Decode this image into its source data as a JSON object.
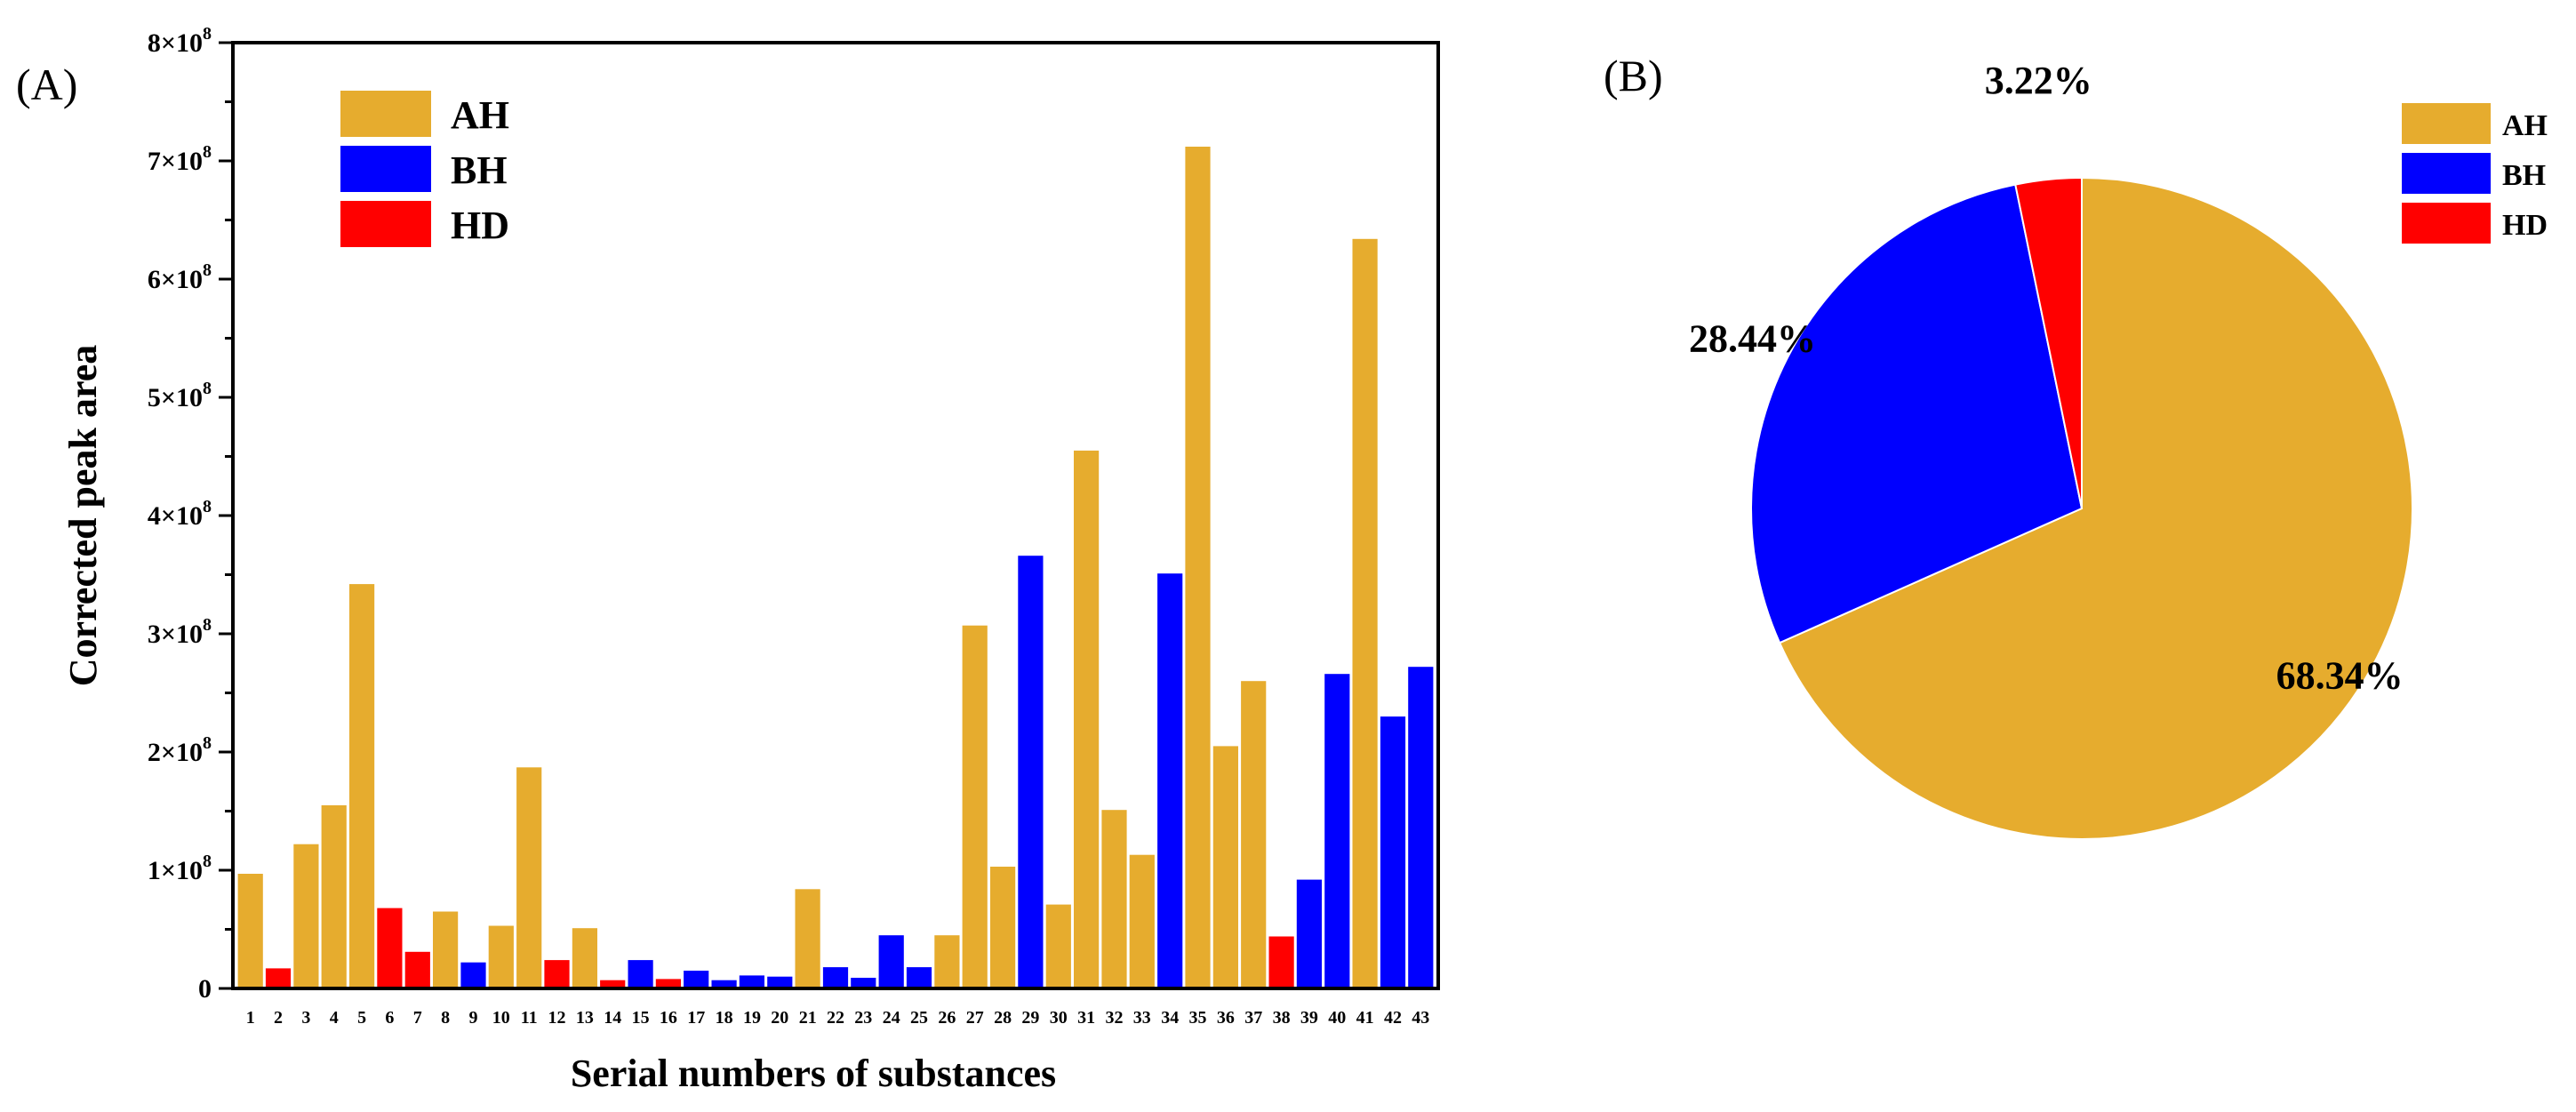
{
  "colors": {
    "AH": "#E6AC2E",
    "BH": "#0000FF",
    "HD": "#FF0000"
  },
  "chart_data": [
    {
      "type": "bar",
      "panel_label": "(A)",
      "xlabel": "Serial numbers of substances",
      "ylabel": "Corrected peak area",
      "ylim": [
        0,
        800000000
      ],
      "yticks": [
        {
          "value": 0,
          "mantissa": "0",
          "exp": ""
        },
        {
          "value": 100000000,
          "mantissa": "1×10",
          "exp": "8"
        },
        {
          "value": 200000000,
          "mantissa": "2×10",
          "exp": "8"
        },
        {
          "value": 300000000,
          "mantissa": "3×10",
          "exp": "8"
        },
        {
          "value": 400000000,
          "mantissa": "4×10",
          "exp": "8"
        },
        {
          "value": 500000000,
          "mantissa": "5×10",
          "exp": "8"
        },
        {
          "value": 600000000,
          "mantissa": "6×10",
          "exp": "8"
        },
        {
          "value": 700000000,
          "mantissa": "7×10",
          "exp": "8"
        },
        {
          "value": 800000000,
          "mantissa": "8×10",
          "exp": "8"
        }
      ],
      "legend": [
        "AH",
        "BH",
        "HD"
      ],
      "legend_position": "top-left",
      "categories": [
        "1",
        "2",
        "3",
        "4",
        "5",
        "6",
        "7",
        "8",
        "9",
        "10",
        "11",
        "12",
        "13",
        "14",
        "15",
        "16",
        "17",
        "18",
        "19",
        "20",
        "21",
        "22",
        "23",
        "24",
        "25",
        "26",
        "27",
        "28",
        "29",
        "30",
        "31",
        "32",
        "33",
        "34",
        "35",
        "36",
        "37",
        "38",
        "39",
        "40",
        "41",
        "42",
        "43"
      ],
      "groups": [
        "AH",
        "HD",
        "AH",
        "AH",
        "AH",
        "HD",
        "HD",
        "AH",
        "BH",
        "AH",
        "AH",
        "HD",
        "AH",
        "HD",
        "BH",
        "HD",
        "BH",
        "BH",
        "BH",
        "BH",
        "AH",
        "BH",
        "BH",
        "BH",
        "BH",
        "AH",
        "AH",
        "AH",
        "BH",
        "AH",
        "AH",
        "AH",
        "AH",
        "BH",
        "AH",
        "AH",
        "AH",
        "HD",
        "BH",
        "BH",
        "AH",
        "BH",
        "BH"
      ],
      "values": [
        97000000,
        17000000,
        122000000,
        155000000,
        342000000,
        68000000,
        31000000,
        65000000,
        22000000,
        53000000,
        187000000,
        24000000,
        51000000,
        7000000,
        24000000,
        8000000,
        15000000,
        7000000,
        11000000,
        10000000,
        84000000,
        18000000,
        9000000,
        45000000,
        18000000,
        45000000,
        307000000,
        103000000,
        366000000,
        71000000,
        455000000,
        151000000,
        113000000,
        351000000,
        712000000,
        205000000,
        260000000,
        44000000,
        92000000,
        266000000,
        634000000,
        230000000,
        272000000
      ]
    },
    {
      "type": "pie",
      "panel_label": "(B)",
      "labels": [
        "AH",
        "BH",
        "HD"
      ],
      "values": [
        68.34,
        28.44,
        3.22
      ],
      "value_labels": [
        "68.34%",
        "28.44%",
        "3.22%"
      ],
      "legend": [
        "AH",
        "BH",
        "HD"
      ],
      "legend_position": "top-right"
    }
  ]
}
